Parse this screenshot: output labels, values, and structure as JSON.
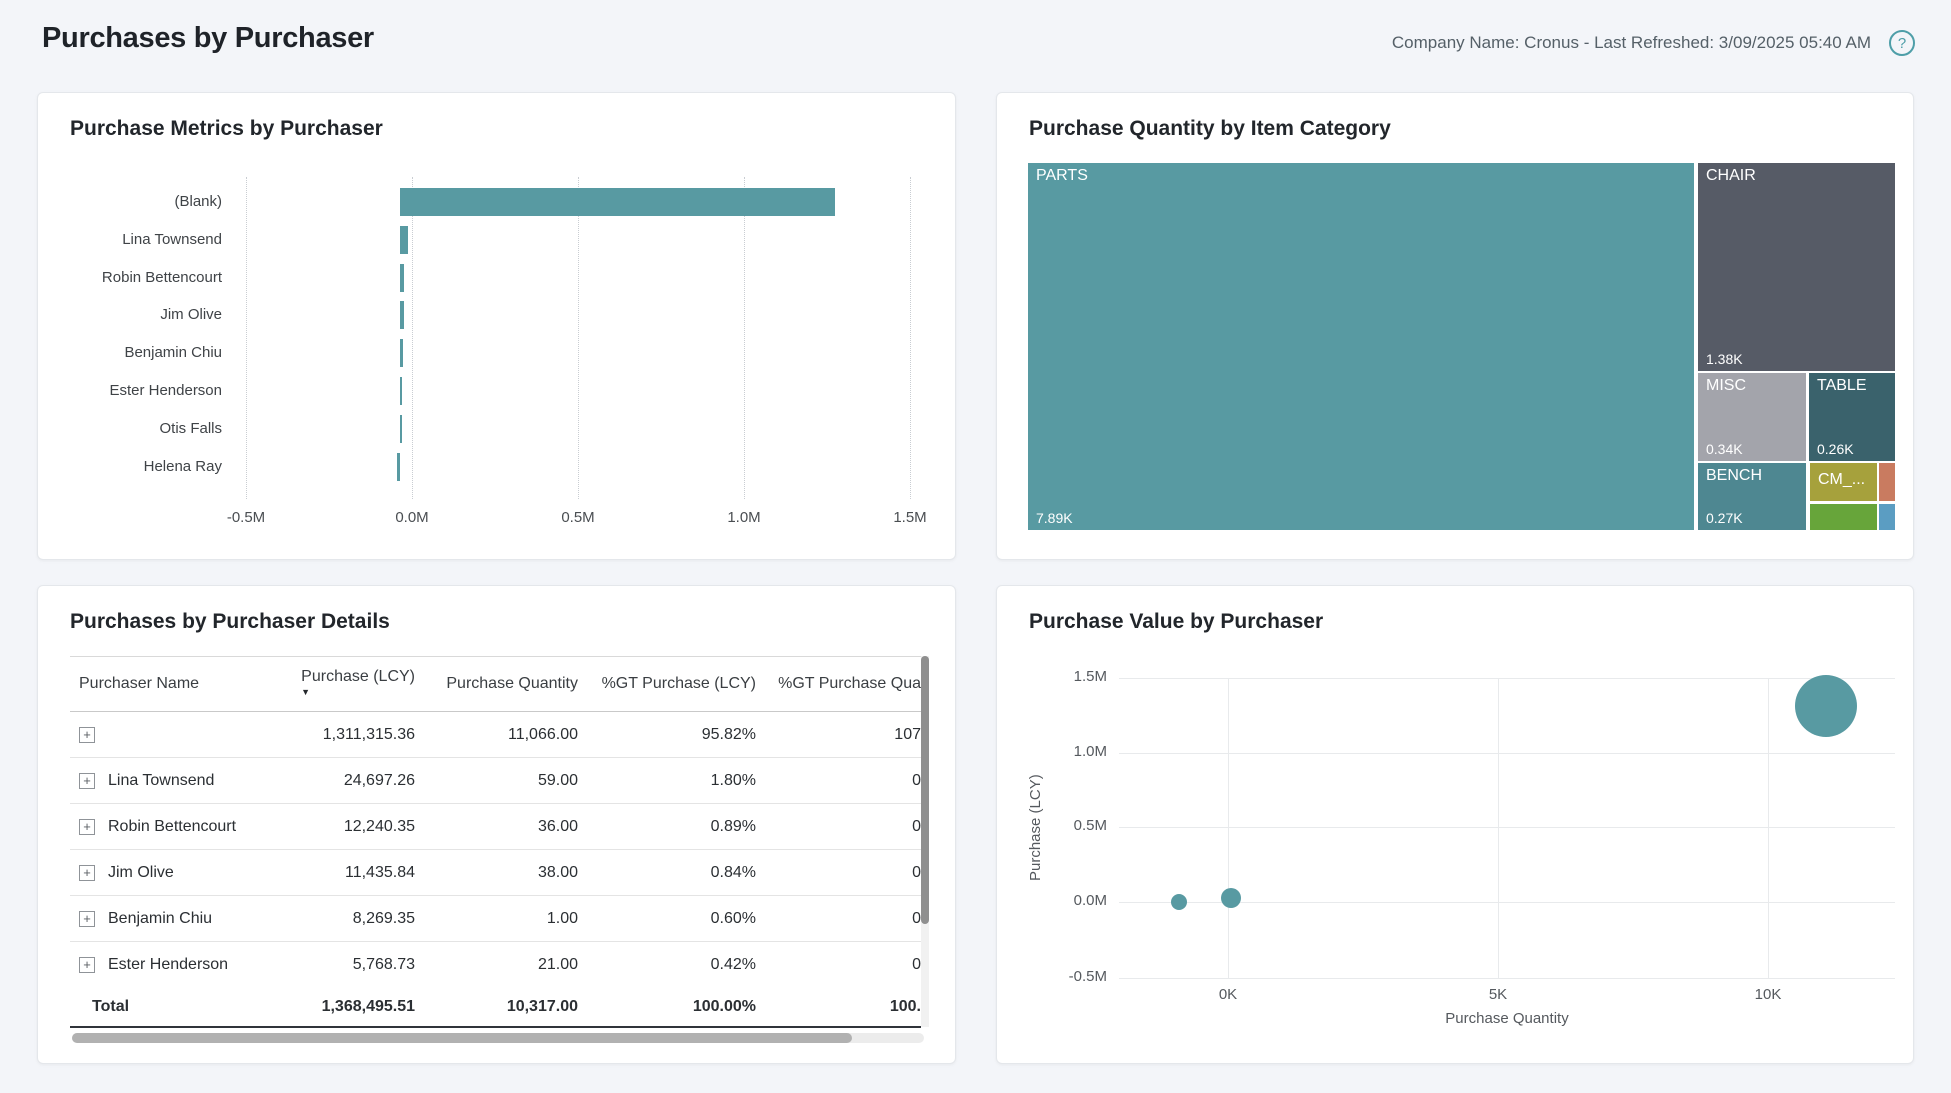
{
  "page": {
    "title": "Purchases by Purchaser",
    "meta": "Company Name: Cronus - Last Refreshed: 3/09/2025 05:40 AM"
  },
  "icons": {
    "help": "?",
    "expand": "+",
    "sort_desc": "▼"
  },
  "colors": {
    "accent_teal": "#589aa2",
    "page_bg": "#f3f5f9",
    "card_bg": "#ffffff",
    "chair": "#565b66",
    "misc": "#a3a4ab",
    "table": "#3a626c",
    "bench": "#4e8791",
    "cm": "#a6a13c",
    "orange": "#c97b60",
    "green": "#67a53a",
    "blue": "#5b9dc2",
    "help_icon": "#4e9ea8"
  },
  "bar_chart": {
    "title": "Purchase Metrics by Purchaser",
    "categories": [
      "(Blank)",
      "Lina Townsend",
      "Robin Bettencourt",
      "Jim Olive",
      "Benjamin Chiu",
      "Ester Henderson",
      "Otis Falls",
      "Helena Ray"
    ],
    "x_ticks": [
      "-0.5M",
      "0.0M",
      "0.5M",
      "1.0M",
      "1.5M"
    ]
  },
  "treemap": {
    "title": "Purchase Quantity by Item Category",
    "items": [
      {
        "label": "PARTS",
        "value": "7.89K"
      },
      {
        "label": "CHAIR",
        "value": "1.38K"
      },
      {
        "label": "MISC",
        "value": "0.34K"
      },
      {
        "label": "TABLE",
        "value": "0.26K"
      },
      {
        "label": "BENCH",
        "value": "0.27K"
      },
      {
        "label": "CM_...",
        "value": ""
      }
    ]
  },
  "details": {
    "title": "Purchases by Purchaser Details",
    "columns": [
      "Purchaser Name",
      "Purchase (LCY)",
      "Purchase Quantity",
      "%GT Purchase (LCY)",
      "%GT Purchase Qua"
    ],
    "rows": [
      {
        "name": "",
        "purchase": "1,311,315.36",
        "qty": "11,066.00",
        "gt_purchase": "95.82%",
        "gt_qty": "107"
      },
      {
        "name": "Lina Townsend",
        "purchase": "24,697.26",
        "qty": "59.00",
        "gt_purchase": "1.80%",
        "gt_qty": "0"
      },
      {
        "name": "Robin Bettencourt",
        "purchase": "12,240.35",
        "qty": "36.00",
        "gt_purchase": "0.89%",
        "gt_qty": "0"
      },
      {
        "name": "Jim Olive",
        "purchase": "11,435.84",
        "qty": "38.00",
        "gt_purchase": "0.84%",
        "gt_qty": "0"
      },
      {
        "name": "Benjamin Chiu",
        "purchase": "8,269.35",
        "qty": "1.00",
        "gt_purchase": "0.60%",
        "gt_qty": "0"
      },
      {
        "name": "Ester Henderson",
        "purchase": "5,768.73",
        "qty": "21.00",
        "gt_purchase": "0.42%",
        "gt_qty": "0"
      }
    ],
    "total": {
      "name": "Total",
      "purchase": "1,368,495.51",
      "qty": "10,317.00",
      "gt_purchase": "100.00%",
      "gt_qty": "100."
    }
  },
  "scatter": {
    "title": "Purchase Value by Purchaser",
    "xlabel": "Purchase Quantity",
    "ylabel": "Purchase (LCY)",
    "x_ticks": [
      "0K",
      "5K",
      "10K"
    ],
    "y_ticks": [
      "1.5M",
      "1.0M",
      "0.5M",
      "0.0M",
      "-0.5M"
    ]
  },
  "chart_data": [
    {
      "type": "bar",
      "orientation": "horizontal",
      "title": "Purchase Metrics by Purchaser",
      "categories": [
        "(Blank)",
        "Lina Townsend",
        "Robin Bettencourt",
        "Jim Olive",
        "Benjamin Chiu",
        "Ester Henderson",
        "Otis Falls",
        "Helena Ray"
      ],
      "values": [
        1311315.36,
        24697.26,
        12240.35,
        11435.84,
        8269.35,
        5768.73,
        4000,
        -8000
      ],
      "xlabel": "",
      "ylabel": "",
      "xlim": [
        -500000,
        1500000
      ],
      "x_tick_labels": [
        "-0.5M",
        "0.0M",
        "0.5M",
        "1.0M",
        "1.5M"
      ],
      "grid": "dotted-vertical",
      "color": "#589aa2"
    },
    {
      "type": "treemap",
      "title": "Purchase Quantity by Item Category",
      "items": [
        {
          "label": "PARTS",
          "value": 7890,
          "color": "#589aa2"
        },
        {
          "label": "CHAIR",
          "value": 1380,
          "color": "#565b66"
        },
        {
          "label": "MISC",
          "value": 340,
          "color": "#a3a4ab"
        },
        {
          "label": "BENCH",
          "value": 270,
          "color": "#4e8791"
        },
        {
          "label": "TABLE",
          "value": 260,
          "color": "#3a626c"
        },
        {
          "label": "CM_...",
          "value": 100,
          "color": "#a6a13c"
        },
        {
          "label": "",
          "value": 50,
          "color": "#67a53a"
        },
        {
          "label": "",
          "value": 40,
          "color": "#c97b60"
        },
        {
          "label": "",
          "value": 27,
          "color": "#5b9dc2"
        }
      ]
    },
    {
      "type": "table",
      "title": "Purchases by Purchaser Details",
      "columns": [
        "Purchaser Name",
        "Purchase (LCY)",
        "Purchase Quantity",
        "%GT Purchase (LCY)",
        "%GT Purchase Qua"
      ],
      "rows": [
        [
          "",
          "1,311,315.36",
          "11,066.00",
          "95.82%",
          "107"
        ],
        [
          "Lina Townsend",
          "24,697.26",
          "59.00",
          "1.80%",
          "0"
        ],
        [
          "Robin Bettencourt",
          "12,240.35",
          "36.00",
          "0.89%",
          "0"
        ],
        [
          "Jim Olive",
          "11,435.84",
          "38.00",
          "0.84%",
          "0"
        ],
        [
          "Benjamin Chiu",
          "8,269.35",
          "1.00",
          "0.60%",
          "0"
        ],
        [
          "Ester Henderson",
          "5,768.73",
          "21.00",
          "0.42%",
          "0"
        ],
        [
          "Total",
          "1,368,495.51",
          "10,317.00",
          "100.00%",
          "100."
        ]
      ]
    },
    {
      "type": "scatter",
      "title": "Purchase Value by Purchaser",
      "xlabel": "Purchase Quantity",
      "ylabel": "Purchase (LCY)",
      "xlim": [
        -2000,
        12400
      ],
      "ylim": [
        -500000,
        1500000
      ],
      "x_tick_labels": [
        "0K",
        "5K",
        "10K"
      ],
      "y_tick_labels": [
        "1.5M",
        "1.0M",
        "0.5M",
        "0.0M",
        "-0.5M"
      ],
      "grid": true,
      "legend": false,
      "color": "#589aa2",
      "points": [
        {
          "x": 11066,
          "y": 1311315.36,
          "r": 31
        },
        {
          "x": 59,
          "y": 24697.26,
          "r": 10
        },
        {
          "x": -900,
          "y": 0,
          "r": 8
        }
      ]
    }
  ]
}
